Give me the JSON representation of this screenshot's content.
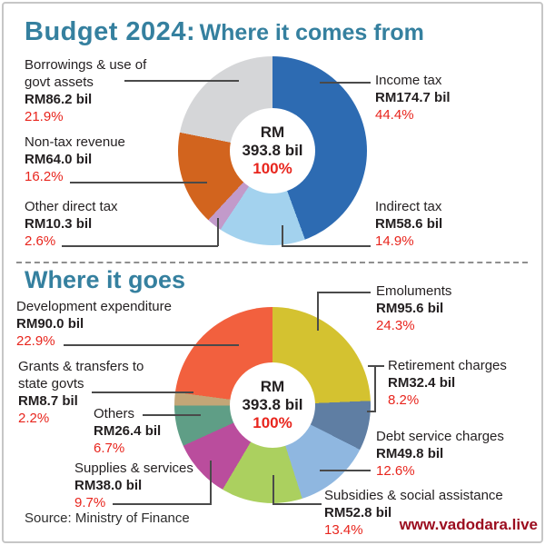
{
  "header": {
    "title_main": "Budget 2024:",
    "title_sub": "Where it comes from"
  },
  "section_expenditure": {
    "title": "Where it goes"
  },
  "donut_center": {
    "currency": "RM",
    "total": "393.8 bil",
    "pct": "100%"
  },
  "source_note": "Source: Ministry of Finance",
  "watermark": "www.vadodara.live",
  "colors": {
    "title_teal": "#35809f",
    "pct_red": "#e8251d",
    "text_black": "#231f20",
    "watermark_maroon": "#9b0c1e",
    "leader_line": "#4a4a4a",
    "frame_border": "#c6c6c6"
  },
  "chart_data": [
    {
      "type": "pie",
      "title": "Budget 2024: Where it comes from",
      "center_label": "RM 393.8 bil 100%",
      "units": "RM bil",
      "slices": [
        {
          "label": "Income tax",
          "value": "RM174.7 bil",
          "value_bil": 174.7,
          "pct": 44.4,
          "pct_text": "44.4%",
          "color": "#2d6bb2"
        },
        {
          "label": "Indirect tax",
          "value": "RM58.6 bil",
          "value_bil": 58.6,
          "pct": 14.9,
          "pct_text": "14.9%",
          "color": "#a3d2ee"
        },
        {
          "label": "Other direct tax",
          "value": "RM10.3 bil",
          "value_bil": 10.3,
          "pct": 2.6,
          "pct_text": "2.6%",
          "color": "#c29aca"
        },
        {
          "label": "Non-tax revenue",
          "value": "RM64.0 bil",
          "value_bil": 64.0,
          "pct": 16.2,
          "pct_text": "16.2%",
          "color": "#d2641e"
        },
        {
          "label": "Borrowings & use of govt assets",
          "value": "RM86.2 bil",
          "value_bil": 86.2,
          "pct": 21.9,
          "pct_text": "21.9%",
          "color": "#d5d6d8"
        }
      ]
    },
    {
      "type": "pie",
      "title": "Where it goes",
      "center_label": "RM 393.8 bil 100%",
      "units": "RM bil",
      "slices": [
        {
          "label": "Emoluments",
          "value": "RM95.6 bil",
          "value_bil": 95.6,
          "pct": 24.3,
          "pct_text": "24.3%",
          "color": "#d4c230"
        },
        {
          "label": "Retirement charges",
          "value": "RM32.4 bil",
          "value_bil": 32.4,
          "pct": 8.2,
          "pct_text": "8.2%",
          "color": "#5f7ea3"
        },
        {
          "label": "Debt service charges",
          "value": "RM49.8 bil",
          "value_bil": 49.8,
          "pct": 12.6,
          "pct_text": "12.6%",
          "color": "#8fb7e0"
        },
        {
          "label": "Subsidies & social assistance",
          "value": "RM52.8 bil",
          "value_bil": 52.8,
          "pct": 13.4,
          "pct_text": "13.4%",
          "color": "#abd05f"
        },
        {
          "label": "Supplies & services",
          "value": "RM38.0 bil",
          "value_bil": 38.0,
          "pct": 9.7,
          "pct_text": "9.7%",
          "color": "#ba4d9d"
        },
        {
          "label": "Others",
          "value": "RM26.4 bil",
          "value_bil": 26.4,
          "pct": 6.7,
          "pct_text": "6.7%",
          "color": "#5f9e86"
        },
        {
          "label": "Grants & transfers to state govts",
          "value": "RM8.7 bil",
          "value_bil": 8.7,
          "pct": 2.2,
          "pct_text": "2.2%",
          "color": "#c3a677"
        },
        {
          "label": "Development expenditure",
          "value": "RM90.0 bil",
          "value_bil": 90.0,
          "pct": 22.9,
          "pct_text": "22.9%",
          "color": "#f2603e"
        }
      ]
    }
  ]
}
